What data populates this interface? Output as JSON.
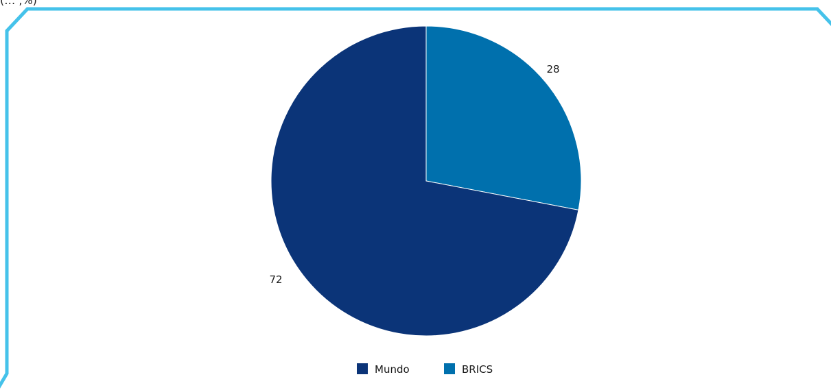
{
  "header_fragment": "(… ,%)",
  "colors": {
    "frame": "#45c2ea",
    "mundo": "#0b3478",
    "brics": "#0070ad"
  },
  "chart_data": {
    "type": "pie",
    "slices": [
      {
        "name": "Mundo",
        "value": 72,
        "color": "#0b3478"
      },
      {
        "name": "BRICS",
        "value": 28,
        "color": "#0070ad"
      }
    ],
    "data_labels": [
      "72",
      "28"
    ],
    "legend": {
      "position": "bottom",
      "entries": [
        "Mundo",
        "BRICS"
      ]
    }
  }
}
